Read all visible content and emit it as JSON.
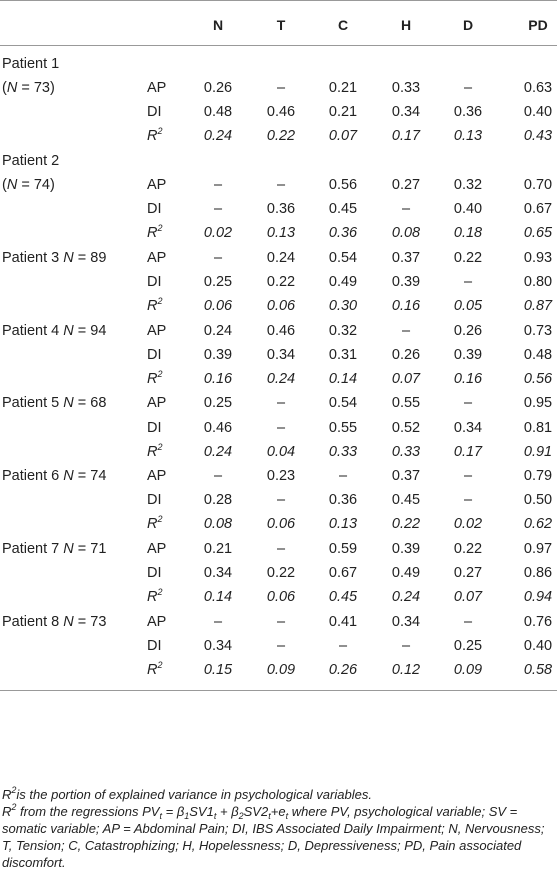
{
  "columns": [
    "N",
    "T",
    "C",
    "H",
    "D",
    "PD"
  ],
  "patients": [
    {
      "label_line1": "Patient 1",
      "label_line2": "(N = 73)",
      "two_line": true,
      "rows": [
        {
          "measure": "AP",
          "values": [
            "0.26",
            "–",
            "0.21",
            "0.33",
            "–",
            "0.63"
          ]
        },
        {
          "measure": "DI",
          "values": [
            "0.48",
            "0.46",
            "0.21",
            "0.34",
            "0.36",
            "0.40"
          ]
        },
        {
          "measure": "R2",
          "values": [
            "0.24",
            "0.22",
            "0.07",
            "0.17",
            "0.13",
            "0.43"
          ]
        }
      ]
    },
    {
      "label_line1": "Patient 2",
      "label_line2": "(N = 74)",
      "two_line": true,
      "rows": [
        {
          "measure": "AP",
          "values": [
            "–",
            "–",
            "0.56",
            "0.27",
            "0.32",
            "0.70"
          ]
        },
        {
          "measure": "DI",
          "values": [
            "–",
            "0.36",
            "0.45",
            "–",
            "0.40",
            "0.67"
          ]
        },
        {
          "measure": "R2",
          "values": [
            "0.02",
            "0.13",
            "0.36",
            "0.08",
            "0.18",
            "0.65"
          ]
        }
      ]
    },
    {
      "label_line1": "Patient 3 N = 89",
      "two_line": false,
      "rows": [
        {
          "measure": "AP",
          "values": [
            "–",
            "0.24",
            "0.54",
            "0.37",
            "0.22",
            "0.93"
          ]
        },
        {
          "measure": "DI",
          "values": [
            "0.25",
            "0.22",
            "0.49",
            "0.39",
            "–",
            "0.80"
          ]
        },
        {
          "measure": "R2",
          "values": [
            "0.06",
            "0.06",
            "0.30",
            "0.16",
            "0.05",
            "0.87"
          ]
        }
      ]
    },
    {
      "label_line1": "Patient 4 N = 94",
      "two_line": false,
      "rows": [
        {
          "measure": "AP",
          "values": [
            "0.24",
            "0.46",
            "0.32",
            "–",
            "0.26",
            "0.73"
          ]
        },
        {
          "measure": "DI",
          "values": [
            "0.39",
            "0.34",
            "0.31",
            "0.26",
            "0.39",
            "0.48"
          ]
        },
        {
          "measure": "R2",
          "values": [
            "0.16",
            "0.24",
            "0.14",
            "0.07",
            "0.16",
            "0.56"
          ]
        }
      ]
    },
    {
      "label_line1": "Patient 5 N = 68",
      "two_line": false,
      "rows": [
        {
          "measure": "AP",
          "values": [
            "0.25",
            "–",
            "0.54",
            "0.55",
            "–",
            "0.95"
          ]
        },
        {
          "measure": "DI",
          "values": [
            "0.46",
            "–",
            "0.55",
            "0.52",
            "0.34",
            "0.81"
          ]
        },
        {
          "measure": "R2",
          "values": [
            "0.24",
            "0.04",
            "0.33",
            "0.33",
            "0.17",
            "0.91"
          ]
        }
      ]
    },
    {
      "label_line1": "Patient 6 N = 74",
      "two_line": false,
      "rows": [
        {
          "measure": "AP",
          "values": [
            "–",
            "0.23",
            "–",
            "0.37",
            "–",
            "0.79"
          ]
        },
        {
          "measure": "DI",
          "values": [
            "0.28",
            "–",
            "0.36",
            "0.45",
            "–",
            "0.50"
          ]
        },
        {
          "measure": "R2",
          "values": [
            "0.08",
            "0.06",
            "0.13",
            "0.22",
            "0.02",
            "0.62"
          ]
        }
      ]
    },
    {
      "label_line1": "Patient 7 N = 71",
      "two_line": false,
      "rows": [
        {
          "measure": "AP",
          "values": [
            "0.21",
            "–",
            "0.59",
            "0.39",
            "0.22",
            "0.97"
          ]
        },
        {
          "measure": "DI",
          "values": [
            "0.34",
            "0.22",
            "0.67",
            "0.49",
            "0.27",
            "0.86"
          ]
        },
        {
          "measure": "R2",
          "values": [
            "0.14",
            "0.06",
            "0.45",
            "0.24",
            "0.07",
            "0.94"
          ]
        }
      ]
    },
    {
      "label_line1": "Patient 8 N = 73",
      "two_line": false,
      "rows": [
        {
          "measure": "AP",
          "values": [
            "–",
            "–",
            "0.41",
            "0.34",
            "–",
            "0.76"
          ]
        },
        {
          "measure": "DI",
          "values": [
            "0.34",
            "–",
            "–",
            "–",
            "0.25",
            "0.40"
          ]
        },
        {
          "measure": "R2",
          "values": [
            "0.15",
            "0.09",
            "0.26",
            "0.12",
            "0.09",
            "0.58"
          ]
        }
      ]
    }
  ],
  "footnotes": {
    "note1": "R2is the portion of explained variance in psychological variables.",
    "note2": "R2 from the regressions PVt = β1SV1t + β2SV2t+et where PV, psychological variable; SV = somatic variable; AP = Abdominal Pain; DI, IBS Associated Daily Impairment; N, Nervousness; T, Tension; C, Catastrophizing; H, Hopelessness; D, Depressiveness; PD, Pain associated discomfort."
  }
}
